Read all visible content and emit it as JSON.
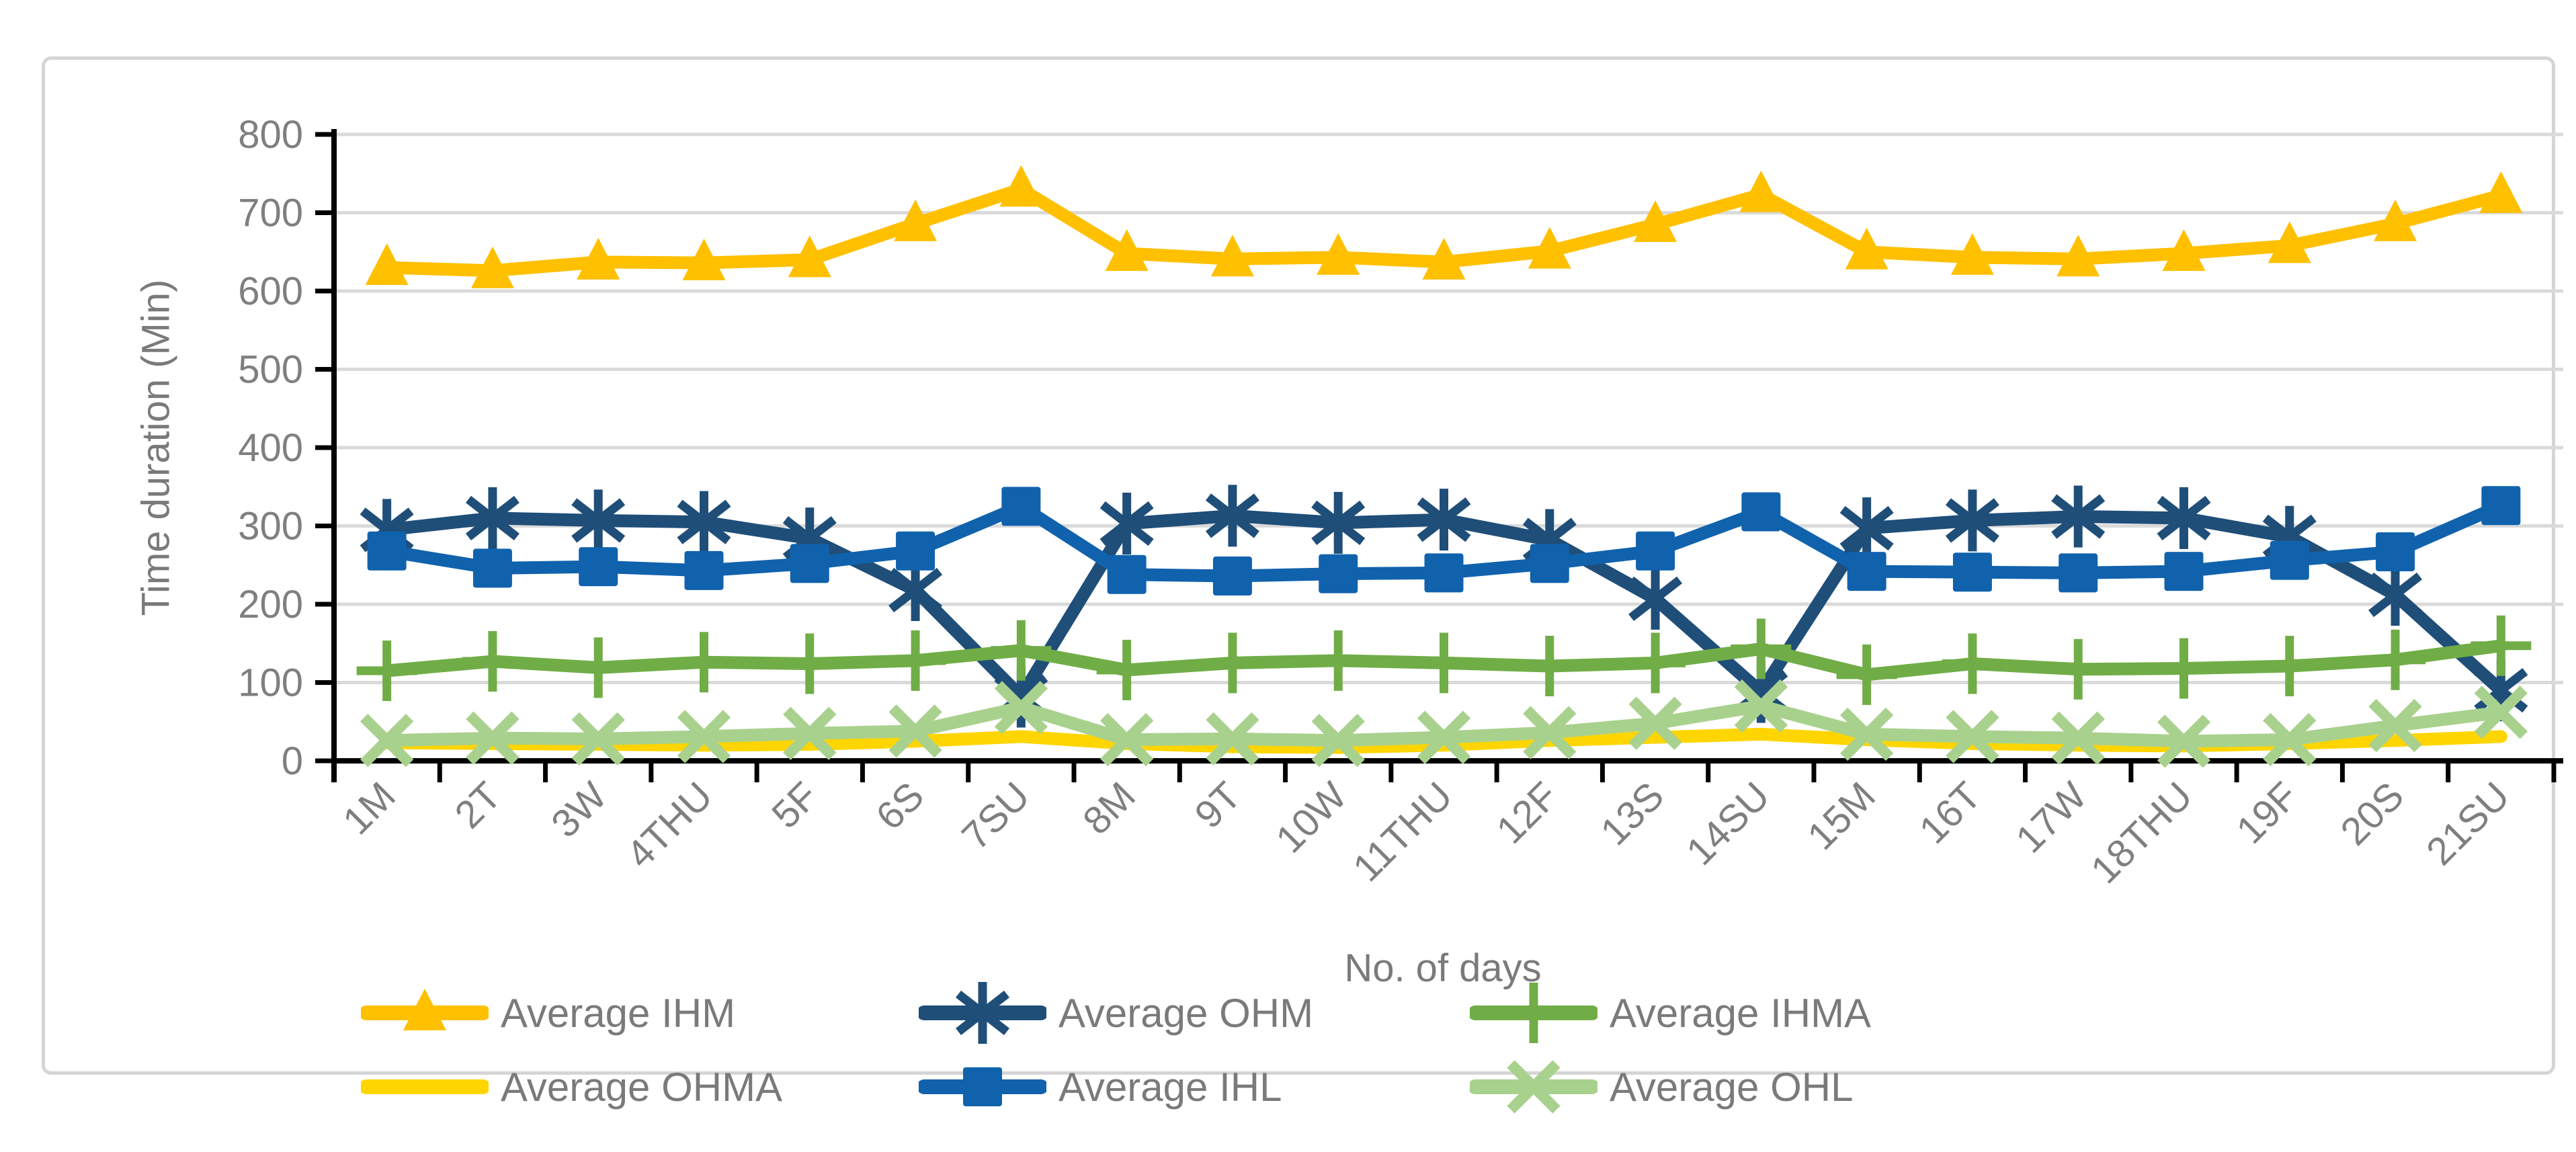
{
  "chart_data": {
    "type": "line",
    "title": "",
    "xlabel": "No. of days",
    "ylabel": "Time duration (Min)",
    "ylim": [
      0,
      800
    ],
    "ytick_step": 100,
    "grid": "horizontal",
    "gridline_color": "#DADADA",
    "axis_color": "#000000",
    "tick_label_color": "#7F7F7F",
    "legend_position": "bottom",
    "categories": [
      "1M",
      "2T",
      "3W",
      "4THU",
      "5F",
      "6S",
      "7SU",
      "8M",
      "9T",
      "10W",
      "11THU",
      "12F",
      "13S",
      "14SU",
      "15M",
      "16T",
      "17W",
      "18THU",
      "19F",
      "20S",
      "21SU"
    ],
    "series": [
      {
        "name": "Average IHM",
        "color": "#FFC000",
        "marker": "triangle",
        "values": [
          630,
          626,
          637,
          636,
          640,
          686,
          730,
          648,
          641,
          643,
          637,
          651,
          685,
          723,
          650,
          643,
          641,
          648,
          658,
          686,
          722
        ]
      },
      {
        "name": "Average OHM",
        "color": "#1F4E79",
        "marker": "star6",
        "values": [
          295,
          310,
          307,
          305,
          284,
          218,
          82,
          303,
          313,
          304,
          308,
          282,
          207,
          88,
          297,
          307,
          312,
          310,
          286,
          212,
          90
        ]
      },
      {
        "name": "Average IHMA",
        "color": "#70AD47",
        "marker": "plus",
        "values": [
          115,
          127,
          119,
          126,
          124,
          128,
          141,
          116,
          125,
          128,
          125,
          121,
          125,
          143,
          110,
          124,
          117,
          118,
          121,
          129,
          147
        ]
      },
      {
        "name": "Average OHMA",
        "color": "#FFD500",
        "marker": "none",
        "values": [
          23,
          22,
          21,
          20,
          21,
          25,
          31,
          22,
          18,
          17,
          20,
          26,
          30,
          34,
          27,
          22,
          20,
          19,
          22,
          26,
          31
        ]
      },
      {
        "name": "Average IHL",
        "color": "#1062AD",
        "marker": "square",
        "values": [
          268,
          246,
          248,
          243,
          252,
          268,
          325,
          238,
          236,
          239,
          240,
          252,
          268,
          318,
          242,
          241,
          240,
          242,
          256,
          267,
          326
        ]
      },
      {
        "name": "Average OHL",
        "color": "#A9D18E",
        "marker": "x",
        "values": [
          26,
          29,
          28,
          31,
          35,
          38,
          68,
          27,
          28,
          26,
          30,
          36,
          48,
          70,
          34,
          31,
          29,
          25,
          27,
          45,
          62
        ]
      }
    ]
  }
}
